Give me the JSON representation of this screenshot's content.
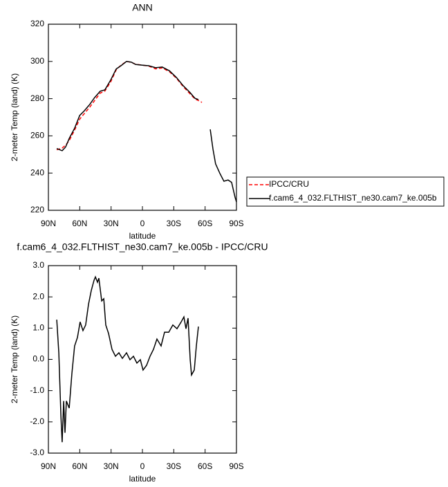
{
  "chart_data": [
    {
      "type": "line",
      "title": "ANN",
      "xlabel": "latitude",
      "ylabel": "2-meter Temp (land) (K)",
      "x": [
        82,
        76.8,
        73.5,
        70,
        65,
        60,
        55.6,
        50.3,
        45.7,
        40.4,
        36,
        30.4,
        25.1,
        20.5,
        15.2,
        10.6,
        6.6,
        0,
        -6,
        -12.6,
        -19,
        -25.8,
        -32.5,
        -39,
        -45.7,
        -50.3,
        -53.6,
        -57,
        -64.9,
        -67.5,
        -70,
        -74,
        -78,
        -82,
        -85.4,
        -88.7,
        -90
      ],
      "series": [
        {
          "name": "IPCC/CRU",
          "color": "#ff0000",
          "dash": true,
          "values": [
            252.5,
            253.5,
            255,
            257.5,
            263,
            269,
            272,
            275.5,
            279,
            283,
            284,
            289,
            295.5,
            298,
            300,
            299.5,
            298.5,
            298,
            297.5,
            296,
            296.5,
            294.5,
            291,
            286.5,
            282.5,
            279.8,
            279,
            278,
            null,
            null,
            null,
            null,
            null,
            null,
            null,
            null,
            null
          ]
        },
        {
          "name": "f.cam6_4_032.FLTHIST_ne30.cam7_ke.005b",
          "color": "#000000",
          "dash": false,
          "values": [
            253.2,
            252,
            254,
            258.7,
            264,
            271,
            273.5,
            277,
            280.6,
            284,
            284.7,
            290,
            296,
            297.7,
            300,
            299.6,
            298.4,
            298,
            297.7,
            296.6,
            297,
            295,
            291.4,
            287,
            283.2,
            280.2,
            279.5,
            null,
            263.5,
            253,
            245,
            240,
            235.6,
            236.3,
            235,
            227,
            224.5
          ]
        }
      ],
      "xlim": [
        90,
        -90
      ],
      "xticks": [
        {
          "value": 90,
          "label": "90N"
        },
        {
          "value": 60,
          "label": "60N"
        },
        {
          "value": 30,
          "label": "30N"
        },
        0,
        {
          "value": -30,
          "label": "30S"
        },
        {
          "value": -60,
          "label": "60S"
        },
        {
          "value": -90,
          "label": "90S"
        }
      ],
      "ylim": [
        220,
        320
      ],
      "yticks": [
        220,
        240,
        260,
        280,
        300,
        320
      ],
      "legend": "right"
    },
    {
      "type": "line",
      "title": "f.cam6_4_032.FLTHIST_ne30.cam7_ke.005b - IPCC/CRU",
      "xlabel": "latitude",
      "ylabel": "2-meter Temp (land) (K)",
      "x": [
        82,
        80,
        78,
        76.8,
        75.4,
        74.1,
        72.8,
        70.1,
        67.5,
        64.9,
        62.2,
        59.6,
        56.9,
        54.3,
        51.6,
        49,
        46.3,
        45,
        43,
        41.7,
        39,
        37,
        35.1,
        32.4,
        29.1,
        25.8,
        22.5,
        19.2,
        15.2,
        11.9,
        8.6,
        5.3,
        2,
        -0.6,
        -4,
        -7.3,
        -10.6,
        -13.9,
        -17.9,
        -21.2,
        -25.2,
        -29.1,
        -33.1,
        -37.1,
        -39.7,
        -41.7,
        -43.7,
        -45.7,
        -47,
        -49.6,
        -51.6,
        -53.6
      ],
      "series": [
        {
          "color": "#000000",
          "dash": false,
          "values": [
            1.27,
            0.2,
            -1.8,
            -2.65,
            -1.33,
            -2.35,
            -1.33,
            -1.56,
            -0.45,
            0.43,
            0.7,
            1.2,
            0.92,
            1.1,
            1.76,
            2.2,
            2.53,
            2.64,
            2.47,
            2.6,
            1.87,
            1.94,
            1.1,
            0.83,
            0.32,
            0.1,
            0.21,
            0.03,
            0.21,
            -0.01,
            0.1,
            -0.12,
            -0.01,
            -0.34,
            -0.19,
            0.1,
            0.32,
            0.65,
            0.43,
            0.87,
            0.87,
            1.1,
            0.98,
            1.2,
            1.36,
            0.98,
            1.32,
            -0.01,
            -0.5,
            -0.34,
            0.43,
            1.05
          ]
        }
      ],
      "xlim": [
        90,
        -90
      ],
      "xticks": [
        {
          "value": 90,
          "label": "90N"
        },
        {
          "value": 60,
          "label": "60N"
        },
        {
          "value": 30,
          "label": "30N"
        },
        0,
        {
          "value": -30,
          "label": "30S"
        },
        {
          "value": -60,
          "label": "60S"
        },
        {
          "value": -90,
          "label": "90S"
        }
      ],
      "ylim": [
        -3,
        3
      ],
      "yticks": [
        {
          "value": -3,
          "label": "-3.0"
        },
        {
          "value": -2,
          "label": "-2.0"
        },
        {
          "value": -1,
          "label": "-1.0"
        },
        {
          "value": 0,
          "label": "0.0"
        },
        {
          "value": 1,
          "label": "1.0"
        },
        {
          "value": 2,
          "label": "2.0"
        },
        {
          "value": 3,
          "label": "3.0"
        }
      ]
    }
  ]
}
